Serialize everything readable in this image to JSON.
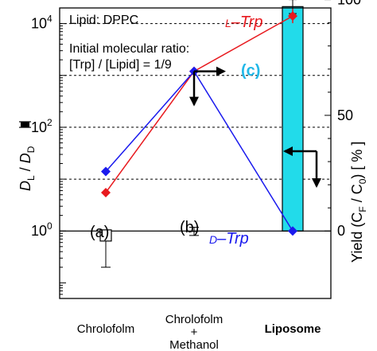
{
  "chart_data": {
    "type": "scatter",
    "categories": [
      "Chrolofolm",
      "Chrolofolm\n+\nMethanol",
      "Liposome"
    ],
    "category_bold": [
      false,
      false,
      true
    ],
    "left_axis": {
      "label_main": "D",
      "label_sub1": "L",
      "label_slash": " / ",
      "label_sub2": "D",
      "scale": "log",
      "ylim": [
        0.05,
        20000
      ],
      "ticks": [
        {
          "value": 1,
          "base": "10",
          "exp": "0"
        },
        {
          "value": 100,
          "base": "10",
          "exp": "2"
        },
        {
          "value": 10000,
          "base": "10",
          "exp": "4"
        }
      ],
      "dashed_gridlines": [
        10,
        1000
      ]
    },
    "right_axis": {
      "label": "Yield  (C",
      "label_sub1": "F",
      "label_mid": " / C",
      "label_sub2": "0",
      "label_end": ")  [ % ]",
      "ylim": [
        0,
        100
      ],
      "ticks": [
        {
          "value": 0,
          "label": "0"
        },
        {
          "value": 50,
          "label": "50"
        },
        {
          "value": 100,
          "label": "100"
        }
      ],
      "dashed_gridlines": [
        25,
        75
      ]
    },
    "series": [
      {
        "name": "L–Trp",
        "prefix": "L",
        "suffix": "–Trp",
        "color": "#e8191e",
        "marker": "diamond",
        "axis": "left",
        "values": [
          5.5,
          1200,
          14000
        ]
      },
      {
        "name": "D–Trp",
        "prefix": "D",
        "suffix": "–Trp",
        "color": "#1a1aee",
        "marker": "diamond",
        "axis": "left",
        "values": [
          14,
          1200,
          1
        ]
      }
    ],
    "ratio_points": {
      "values": [
        0.82,
        0.98,
        null
      ],
      "err_low": [
        0.2,
        0.82,
        null
      ],
      "err_high": [
        1.02,
        1.18,
        null
      ]
    },
    "yield_bar": {
      "category_index": 2,
      "value": 97,
      "err": 3,
      "color": "#22dbea"
    },
    "reference_line": 1,
    "annotations": {
      "lipid": "Lipid: DPPC",
      "ratio_line1": "Initial molecular ratio:",
      "ratio_line2": "[Trp] / [Lipid] = 1/9",
      "panel_a": "(a)",
      "panel_b": "(b)",
      "panel_c": "(c)",
      "panel_c_color": "#22b8e8"
    }
  }
}
